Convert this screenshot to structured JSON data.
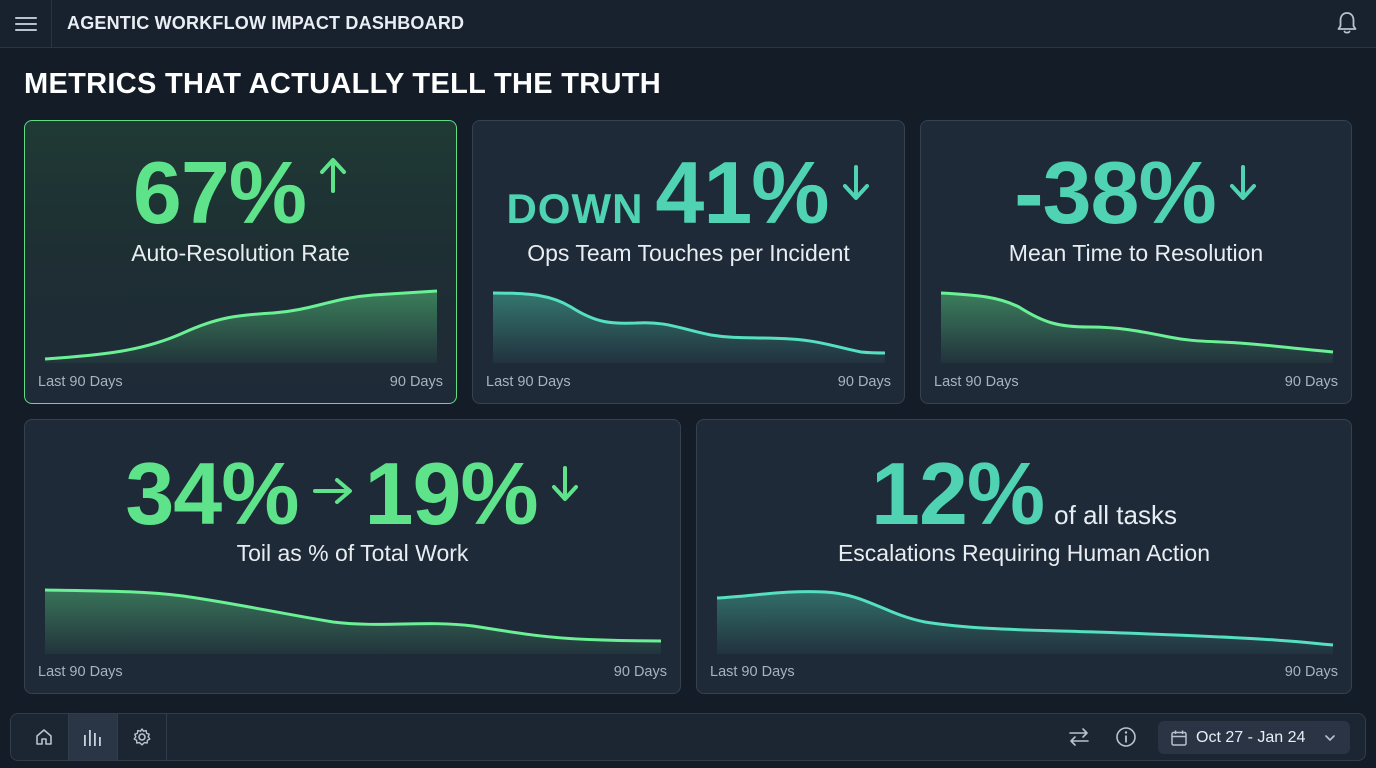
{
  "header": {
    "title": "AGENTIC WORKFLOW IMPACT DASHBOARD",
    "menu_icon": "hamburger-icon",
    "notification_icon": "bell-icon"
  },
  "page": {
    "title": "METRICS THAT ACTUALLY TELL THE TRUTH"
  },
  "cards": [
    {
      "value": "67%",
      "trend": "up",
      "label": "Auto-Resolution Rate",
      "footer_left": "Last 90 Days",
      "footer_right": "90 Days",
      "color": "#5ee38a"
    },
    {
      "prefix": "DOWN",
      "value": "41%",
      "trend": "down",
      "label": "Ops Team Touches per Incident",
      "footer_left": "Last 90 Days",
      "footer_right": "90 Days",
      "color": "#4fd3b3"
    },
    {
      "value": "-38%",
      "trend": "down",
      "label": "Mean Time to Resolution",
      "footer_left": "Last 90 Days",
      "footer_right": "90 Days",
      "color": "#4fd3b3"
    },
    {
      "value_from": "34%",
      "value_to": "19%",
      "trend": "down",
      "label": "Toil as % of Total Work",
      "footer_left": "Last 90 Days",
      "footer_right": "90 Days",
      "color": "#5ee38a"
    },
    {
      "value": "12%",
      "suffix": "of all tasks",
      "label": "Escalations Requiring Human Action",
      "footer_left": "Last 90 Days",
      "footer_right": "90 Days",
      "color": "#4fd3b3"
    }
  ],
  "bottom_bar": {
    "nav": [
      {
        "icon": "home-icon",
        "active": false
      },
      {
        "icon": "bar-chart-icon",
        "active": true
      },
      {
        "icon": "gear-icon",
        "active": false
      }
    ],
    "swap_icon": "swap-arrows-icon",
    "info_icon": "info-icon",
    "date_range": "Oct 27 - Jan 24"
  }
}
